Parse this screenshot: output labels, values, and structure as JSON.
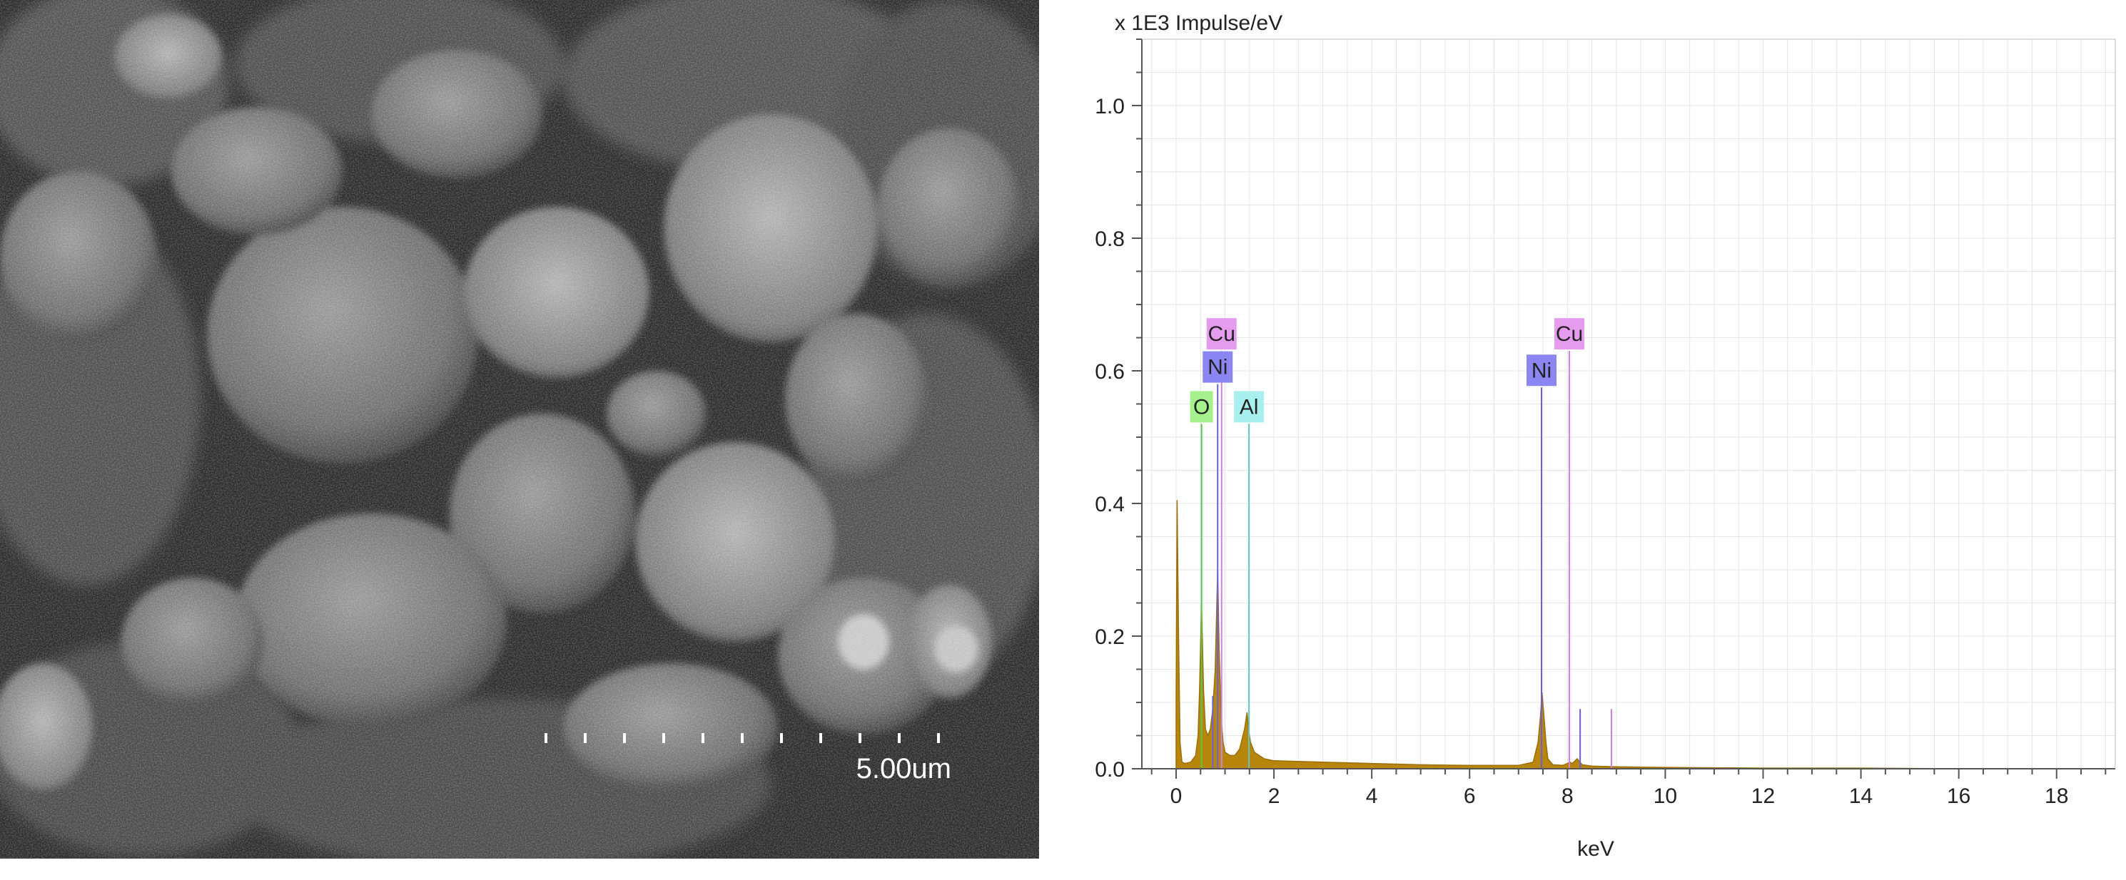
{
  "sem_image": {
    "scale_bar_label": "5.00um"
  },
  "chart_data": {
    "type": "area",
    "title": "",
    "ylabel": "x 1E3 Impulse/eV",
    "xlabel": "keV",
    "xlim": [
      -0.7,
      19.2
    ],
    "ylim": [
      0,
      1.1
    ],
    "x_ticks": [
      0,
      2,
      4,
      6,
      8,
      10,
      12,
      14,
      16,
      18
    ],
    "y_ticks": [
      0.0,
      0.2,
      0.4,
      0.6,
      0.8,
      1.0
    ],
    "grid": true,
    "fill_color": "#b8860b",
    "series": [
      {
        "x": [
          0.0,
          0.02,
          0.05,
          0.08,
          0.12,
          0.18,
          0.3,
          0.4,
          0.45,
          0.48,
          0.52,
          0.56,
          0.6,
          0.65,
          0.7,
          0.75,
          0.8,
          0.85,
          0.88,
          0.92,
          0.96,
          1.0,
          1.1,
          1.2,
          1.3,
          1.4,
          1.45,
          1.48,
          1.52,
          1.6,
          1.8,
          2.0,
          2.5,
          3.0,
          4.0,
          5.0,
          6.0,
          7.0,
          7.3,
          7.4,
          7.45,
          7.48,
          7.52,
          7.56,
          7.6,
          7.7,
          7.9,
          8.0,
          8.05,
          8.1,
          8.2,
          8.3,
          8.5,
          9.0,
          10.0,
          12.0,
          14.0,
          16.0,
          18.0,
          19.0
        ],
        "y": [
          0.1,
          0.405,
          0.2,
          0.04,
          0.01,
          0.008,
          0.01,
          0.02,
          0.05,
          0.12,
          0.25,
          0.12,
          0.06,
          0.05,
          0.06,
          0.09,
          0.15,
          0.3,
          0.18,
          0.08,
          0.04,
          0.025,
          0.02,
          0.02,
          0.03,
          0.06,
          0.085,
          0.06,
          0.04,
          0.025,
          0.015,
          0.012,
          0.011,
          0.01,
          0.008,
          0.006,
          0.005,
          0.005,
          0.01,
          0.04,
          0.08,
          0.115,
          0.08,
          0.04,
          0.015,
          0.006,
          0.005,
          0.008,
          0.01,
          0.008,
          0.015,
          0.006,
          0.004,
          0.003,
          0.002,
          0.001,
          0.001,
          0.0,
          0.0,
          0.0
        ]
      }
    ],
    "element_lines": [
      {
        "element": "O",
        "x": 0.52,
        "top": 0.52,
        "color": "#57c84d",
        "label_bg": "#a6f08e"
      },
      {
        "element": "Ni",
        "x": 0.85,
        "top": 0.58,
        "color": "#6a60e8",
        "label_bg": "#8c86f2"
      },
      {
        "element": "Cu",
        "x": 0.93,
        "top": 0.63,
        "color": "#d080e0",
        "label_bg": "#e59cef"
      },
      {
        "element": "Al",
        "x": 1.49,
        "top": 0.52,
        "color": "#5cc8c8",
        "label_bg": "#a8f0f0"
      },
      {
        "element": "Ni",
        "x": 7.47,
        "top": 0.575,
        "color": "#6a60e8",
        "label_bg": "#8c86f2"
      },
      {
        "element": "Cu",
        "x": 8.04,
        "top": 0.63,
        "color": "#d080e0",
        "label_bg": "#e59cef"
      }
    ],
    "minor_lines": [
      {
        "x": 8.26,
        "top": 0.09,
        "color": "#6a60e8"
      },
      {
        "x": 8.9,
        "top": 0.09,
        "color": "#d080e0"
      },
      {
        "x": 0.75,
        "top": 0.11,
        "color": "#6a60e8"
      }
    ]
  }
}
